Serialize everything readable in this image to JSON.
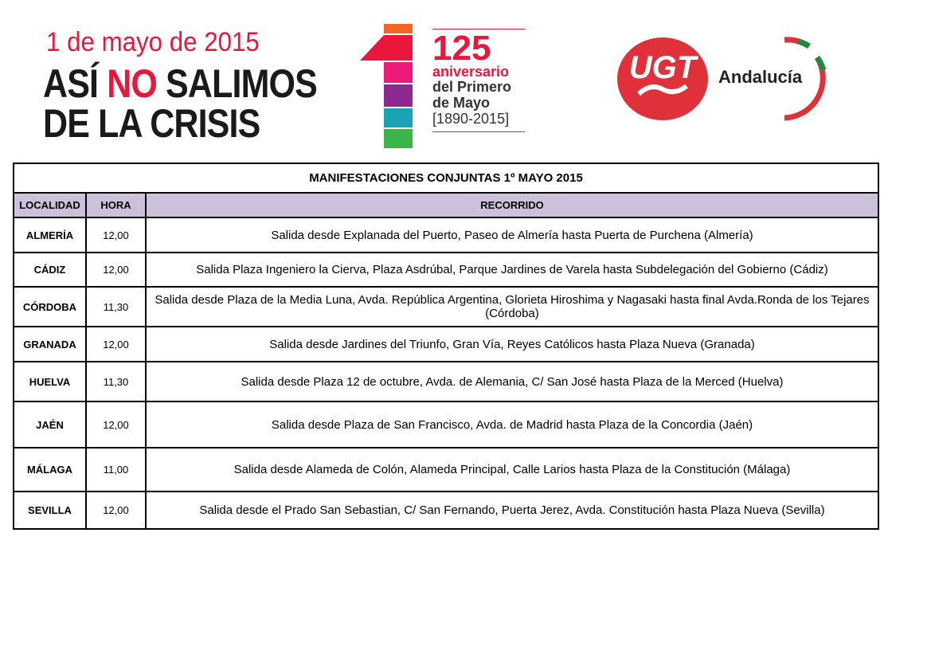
{
  "banner": {
    "date": "1 de mayo de 2015",
    "slogan_1a": "ASÍ ",
    "slogan_1b": "NO",
    "slogan_1c": " SALIMOS",
    "slogan_2": "DE LA CRISIS",
    "anniversary": {
      "number": "125",
      "line1": "aniversario",
      "line2": "del Primero",
      "line3": "de Mayo",
      "years": "[1890-2015]"
    }
  },
  "logo": {
    "text": "UGT",
    "region": "Andalucía",
    "colors": {
      "red": "#e0303a",
      "green": "#1f8a3c"
    }
  },
  "table": {
    "title": "MANIFESTACIONES CONJUNTAS 1º MAYO 2015",
    "headers": [
      "LOCALIDAD",
      "HORA",
      "RECORRIDO"
    ],
    "header_color": "#ccc0da",
    "rows": [
      {
        "localidad": "ALMERÍA",
        "hora": "12,00",
        "recorrido": "Salida desde Explanada del Puerto, Paseo de Almería hasta Puerta de Purchena (Almería)"
      },
      {
        "localidad": "CÁDIZ",
        "hora": "12,00",
        "recorrido": "Salida Plaza Ingeniero la Cierva, Plaza Asdrúbal, Parque Jardines de Varela hasta Subdelegación del Gobierno (Cádiz)"
      },
      {
        "localidad": "CÓRDOBA",
        "hora": "11,30",
        "recorrido": "Salida desde Plaza de la Media Luna, Avda. República Argentina, Glorieta Hiroshima y Nagasaki hasta final Avda.Ronda de los Tejares (Córdoba)"
      },
      {
        "localidad": "GRANADA",
        "hora": "12,00",
        "recorrido": "Salida desde Jardines del Triunfo, Gran Vía, Reyes Católicos hasta Plaza Nueva (Granada)"
      },
      {
        "localidad": "HUELVA",
        "hora": "11,30",
        "recorrido": "Salida desde Plaza 12 de octubre, Avda. de Alemania, C/ San José hasta Plaza de la Merced (Huelva)"
      },
      {
        "localidad": "JAÉN",
        "hora": "12,00",
        "recorrido": "Salida desde Plaza de San Francisco, Avda. de Madrid hasta Plaza de la Concordia (Jaén)"
      },
      {
        "localidad": "MÁLAGA",
        "hora": "11,00",
        "recorrido": "Salida desde Alameda de Colón, Alameda Principal, Calle Larios hasta Plaza de la Constitución (Málaga)"
      },
      {
        "localidad": "SEVILLA",
        "hora": "12,00",
        "recorrido": "Salida desde el Prado San Sebastian, C/ San Fernando, Puerta Jerez, Avda. Constitución hasta Plaza Nueva (Sevilla)"
      }
    ]
  }
}
